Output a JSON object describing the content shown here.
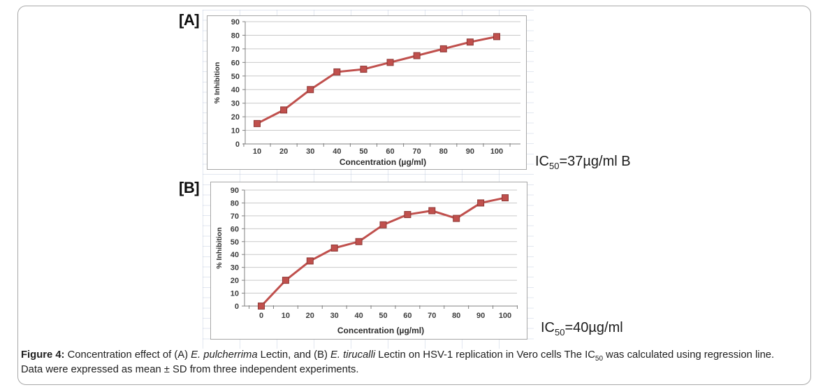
{
  "panels": [
    {
      "label": "[A]",
      "ic50": {
        "prefix": "IC",
        "sub": "50",
        "rest": "=37µg/ml B"
      }
    },
    {
      "label": "[B]",
      "ic50": {
        "prefix": "IC",
        "sub": "50",
        "rest": "=40µg/ml"
      }
    }
  ],
  "chart_data": [
    {
      "type": "line",
      "panel": "A",
      "title": "",
      "xlabel": "Concentration (µg/ml)",
      "ylabel": "% Inhibition",
      "x": [
        10,
        20,
        30,
        40,
        50,
        60,
        70,
        80,
        90,
        100
      ],
      "series": [
        {
          "name": "% Inhibition",
          "values": [
            15,
            25,
            40,
            53,
            55,
            60,
            65,
            70,
            75,
            79
          ]
        }
      ],
      "ylim": [
        0,
        90
      ],
      "ytick_step": 10,
      "grid": true,
      "legend": "none",
      "line_color": "#c0504d",
      "marker": "square",
      "marker_edge_color": "#8e3a37",
      "grid_color": "#c9c9c9",
      "axis_color": "#808080"
    },
    {
      "type": "line",
      "panel": "B",
      "title": "",
      "xlabel": "Concentration (µg/ml)",
      "ylabel": "% Inhibition",
      "x": [
        0,
        10,
        20,
        30,
        40,
        50,
        60,
        70,
        80,
        90,
        100
      ],
      "series": [
        {
          "name": "% Inhibition",
          "values": [
            0,
            20,
            35,
            45,
            50,
            63,
            71,
            74,
            68,
            80,
            84
          ]
        }
      ],
      "ylim": [
        0,
        90
      ],
      "ytick_step": 10,
      "grid": true,
      "legend": "none",
      "line_color": "#c0504d",
      "marker": "square",
      "marker_edge_color": "#8e3a37",
      "grid_color": "#c9c9c9",
      "axis_color": "#808080"
    }
  ],
  "caption": {
    "runs": [
      {
        "text": "Figure 4:",
        "bold": true
      },
      {
        "text": " Concentration effect of (A) "
      },
      {
        "text": "E. pulcherrima",
        "italic": true
      },
      {
        "text": " Lectin, and (B) "
      },
      {
        "text": "E. tirucalli",
        "italic": true
      },
      {
        "text": " Lectin on HSV-1 replication in Vero cells The IC"
      },
      {
        "text": "50",
        "sub": true
      },
      {
        "text": " was calculated using regression line."
      },
      {
        "text": "Data were expressed as mean ± SD from three independent experiments.",
        "newline": true
      }
    ]
  }
}
